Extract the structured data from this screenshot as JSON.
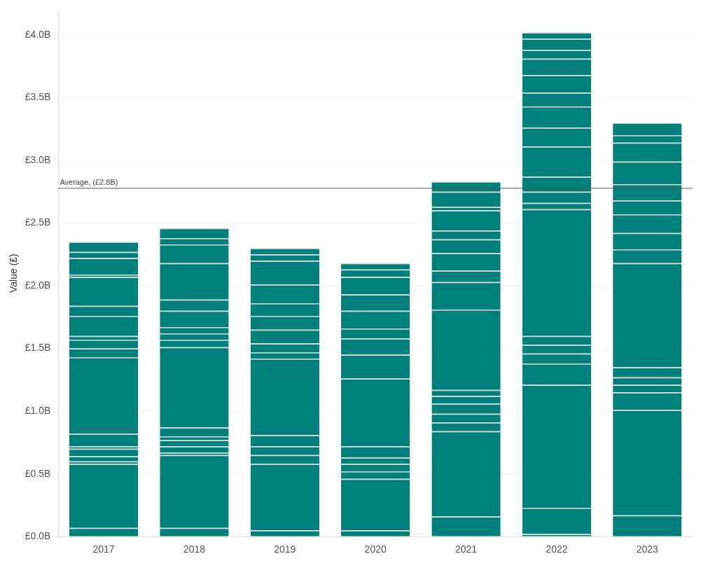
{
  "chart_data": {
    "type": "bar",
    "stacked": true,
    "grid": true,
    "y_label": "Value (£)",
    "categories": [
      "2017",
      "2018",
      "2019",
      "2020",
      "2021",
      "2022",
      "2023"
    ],
    "values": [
      [
        70000000,
        510000000,
        20000000,
        40000000,
        60000000,
        20000000,
        100000000,
        610000000,
        70000000,
        70000000,
        30000000,
        160000000,
        80000000,
        230000000,
        20000000,
        130000000,
        50000000,
        80000000
      ],
      [
        70000000,
        580000000,
        20000000,
        50000000,
        50000000,
        30000000,
        70000000,
        640000000,
        60000000,
        50000000,
        50000000,
        130000000,
        90000000,
        290000000,
        150000000,
        50000000,
        80000000
      ],
      [
        50000000,
        530000000,
        70000000,
        70000000,
        90000000,
        610000000,
        50000000,
        70000000,
        110000000,
        110000000,
        100000000,
        150000000,
        190000000,
        50000000,
        50000000
      ],
      [
        50000000,
        410000000,
        60000000,
        60000000,
        50000000,
        90000000,
        540000000,
        190000000,
        130000000,
        80000000,
        140000000,
        130000000,
        140000000,
        60000000,
        50000000
      ],
      [
        160000000,
        680000000,
        70000000,
        70000000,
        80000000,
        60000000,
        50000000,
        640000000,
        220000000,
        90000000,
        140000000,
        110000000,
        70000000,
        160000000,
        30000000,
        120000000,
        80000000
      ],
      [
        20000000,
        210000000,
        980000000,
        170000000,
        80000000,
        70000000,
        70000000,
        1010000000,
        50000000,
        90000000,
        120000000,
        240000000,
        150000000,
        170000000,
        110000000,
        140000000,
        130000000,
        70000000,
        90000000,
        50000000
      ],
      [
        170000000,
        840000000,
        140000000,
        60000000,
        60000000,
        80000000,
        830000000,
        110000000,
        130000000,
        150000000,
        110000000,
        130000000,
        180000000,
        150000000,
        60000000,
        100000000
      ]
    ],
    "color": "#00807a",
    "average": {
      "value": 2777000000,
      "label": "Average, (£2.8B)"
    },
    "ylim": [
      0,
      4200000000
    ],
    "yticks": [
      {
        "value": 0,
        "label": "£0.0B"
      },
      {
        "value": 500000000,
        "label": "£0.5B"
      },
      {
        "value": 1000000000,
        "label": "£1.0B"
      },
      {
        "value": 1500000000,
        "label": "£1.5B"
      },
      {
        "value": 2000000000,
        "label": "£2.0B"
      },
      {
        "value": 2500000000,
        "label": "£2.5B"
      },
      {
        "value": 3000000000,
        "label": "£3.0B"
      },
      {
        "value": 3500000000,
        "label": "£3.5B"
      },
      {
        "value": 4000000000,
        "label": "£4.0B"
      }
    ]
  }
}
